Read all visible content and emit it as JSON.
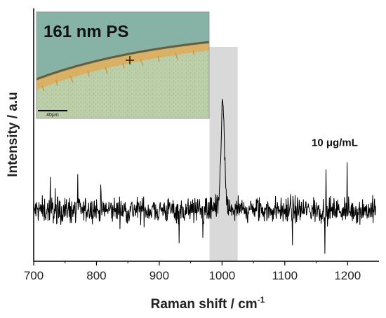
{
  "chart_data": {
    "type": "line",
    "xlabel": "Raman shift / cm",
    "xlabel_superscript": "-1",
    "ylabel": "Intensity / a.u",
    "xlim": [
      700,
      1250
    ],
    "xticks": [
      700,
      800,
      900,
      1000,
      1100,
      1200
    ],
    "yticks_shown": false,
    "highlight_band": {
      "x_start": 980,
      "x_end": 1025,
      "color": "#d9d9d9"
    },
    "series": [
      {
        "color": "#000000",
        "baseline": 0.0,
        "noise_amplitude": 0.35,
        "peak": {
          "center": 1001,
          "height": 1.8,
          "width": 4
        },
        "x_range": [
          700,
          1245
        ]
      }
    ],
    "annotation": {
      "text": "10 μg/mL",
      "x": 1160,
      "y_level": 1.15
    },
    "inset": {
      "title": "161 nm PS",
      "scale_bar_label": "40μm",
      "colors": {
        "background": "#b9cfa6",
        "speckle": "#9fb592",
        "edge_band": "#e1b45a",
        "dark_edge": "#7b5f33",
        "sky": "#7fb0a5"
      }
    }
  }
}
